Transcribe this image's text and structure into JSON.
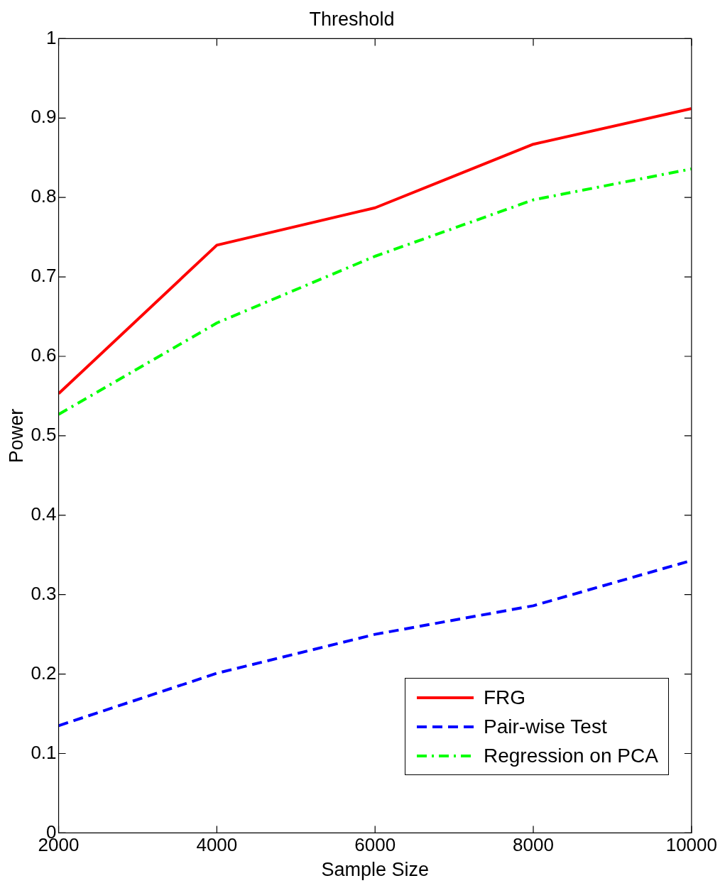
{
  "chart_data": {
    "type": "line",
    "title": "Threshold",
    "xlabel": "Sample Size",
    "ylabel": "Power",
    "x": [
      2000,
      4000,
      6000,
      8000,
      10000
    ],
    "series": [
      {
        "name": "FRG",
        "color": "#ff0000",
        "line_style": "solid",
        "values": [
          0.553,
          0.74,
          0.787,
          0.867,
          0.912
        ]
      },
      {
        "name": "Pair-wise Test",
        "color": "#0000ff",
        "line_style": "dashed",
        "values": [
          0.135,
          0.201,
          0.25,
          0.286,
          0.343
        ]
      },
      {
        "name": "Regression on PCA",
        "color": "#00ff00",
        "line_style": "dashdot",
        "values": [
          0.527,
          0.642,
          0.726,
          0.797,
          0.836
        ]
      }
    ],
    "xlim": [
      2000,
      10000
    ],
    "xticks": [
      2000,
      4000,
      6000,
      8000,
      10000
    ],
    "ylim": [
      0,
      1
    ],
    "yticks": [
      0,
      0.1,
      0.2,
      0.3,
      0.4,
      0.5,
      0.6,
      0.7,
      0.8,
      0.9,
      1
    ],
    "grid": false,
    "legend": "bottom right",
    "marker": "none"
  }
}
